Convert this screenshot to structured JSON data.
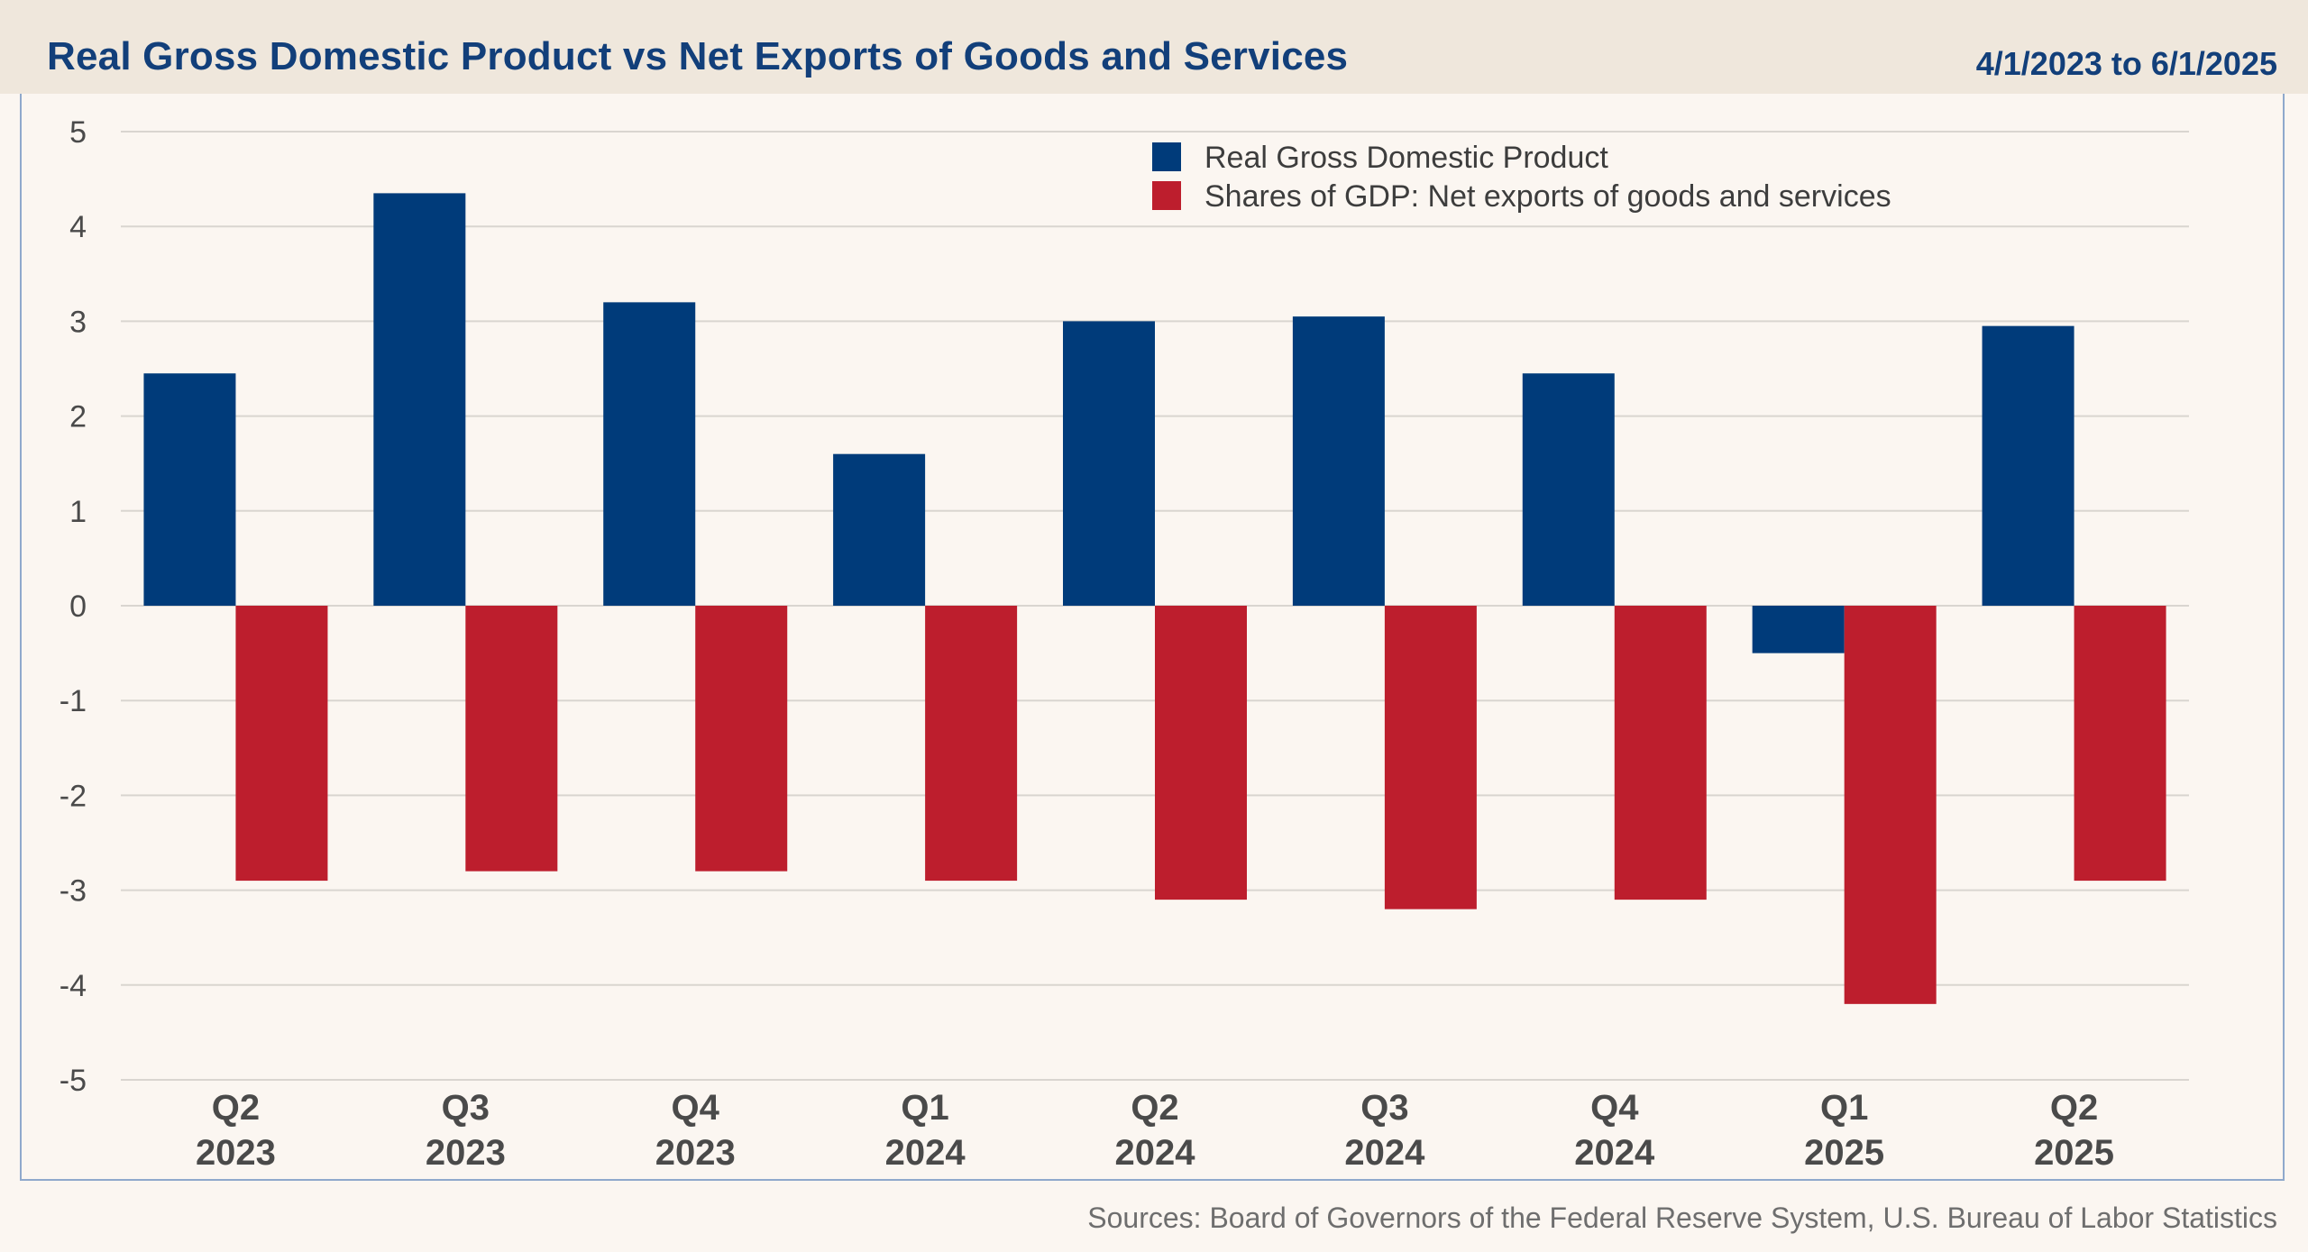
{
  "header": {
    "title": "Real Gross Domestic Product vs Net Exports of Goods and Services",
    "date_range": "4/1/2023 to 6/1/2025"
  },
  "footer": {
    "sources": "Sources: Board of Governors of the Federal Reserve System, U.S. Bureau of Labor Statistics"
  },
  "colors": {
    "gdp": "#003b7a",
    "net_exports": "#bd1e2d",
    "grid": "#d9d5d0",
    "axis_text": "#4a4a4a",
    "category_text": "#4a4a4a"
  },
  "chart_data": {
    "type": "bar",
    "categories": [
      "Q2\n2023",
      "Q3\n2023",
      "Q4\n2023",
      "Q1\n2024",
      "Q2\n2024",
      "Q3\n2024",
      "Q4\n2024",
      "Q1\n2025",
      "Q2\n2025"
    ],
    "series": [
      {
        "name": "Real Gross Domestic Product",
        "values": [
          2.45,
          4.35,
          3.2,
          1.6,
          3.0,
          3.05,
          2.45,
          -0.5,
          2.95
        ]
      },
      {
        "name": "Shares of GDP: Net exports of goods and services",
        "values": [
          -2.9,
          -2.8,
          -2.8,
          -2.9,
          -3.1,
          -3.2,
          -3.1,
          -4.2,
          -2.9
        ]
      }
    ],
    "ylim": [
      -5,
      5
    ],
    "yticks": [
      5,
      4,
      3,
      2,
      1,
      0,
      -1,
      -2,
      -3,
      -4,
      -5
    ],
    "grid": true,
    "legend_position": "top-center"
  }
}
